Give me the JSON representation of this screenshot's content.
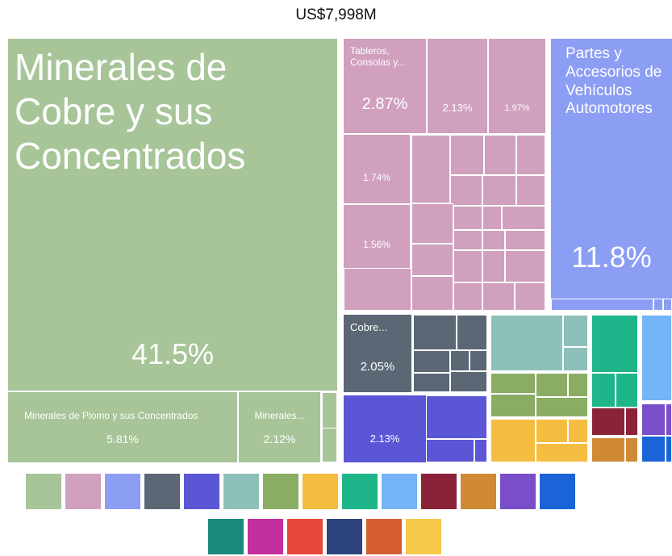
{
  "chart_data": {
    "type": "treemap",
    "title": "US$7,998M",
    "categories": [
      "Minerales de Cobre y sus Concentrados",
      "Minerales de Plomo y sus Concentrados",
      "Minerales...",
      "Tableros, Consolas y...",
      null,
      null,
      null,
      null,
      "Partes y Accesorios de Vehículos Automotores",
      "Cobre...",
      null
    ],
    "values": [
      41.5,
      5.81,
      2.12,
      2.87,
      2.13,
      1.97,
      1.74,
      1.56,
      11.8,
      2.05,
      2.13
    ],
    "value_labels": [
      "41.5%",
      "5.81%",
      "2.12%",
      "2.87%",
      "2.13%",
      "1.97%",
      "1.74%",
      "1.56%",
      "11.8%",
      "2.05%",
      "2.13%"
    ],
    "colors": [
      "#a7c598",
      "#a7c598",
      "#a7c598",
      "#d0a0be",
      "#d0a0be",
      "#d0a0be",
      "#d0a0be",
      "#d0a0be",
      "#8c9df4",
      "#5b6775",
      "#5b56d6"
    ]
  }
}
